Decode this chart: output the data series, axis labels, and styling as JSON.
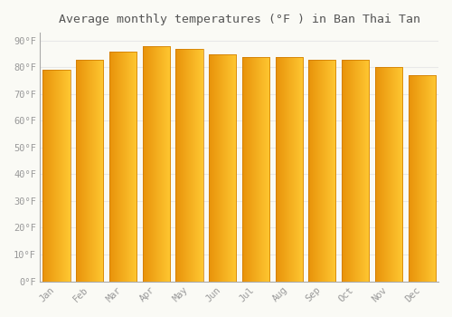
{
  "title": "Average monthly temperatures (°F ) in Ban Thai Tan",
  "months": [
    "Jan",
    "Feb",
    "Mar",
    "Apr",
    "May",
    "Jun",
    "Jul",
    "Aug",
    "Sep",
    "Oct",
    "Nov",
    "Dec"
  ],
  "values": [
    79,
    83,
    86,
    88,
    87,
    85,
    84,
    84,
    83,
    83,
    80,
    77
  ],
  "bar_color_left": "#E8920A",
  "bar_color_right": "#FFC832",
  "bar_edge_color": "#CC7700",
  "background_color": "#FAFAF5",
  "plot_bg_color": "#FAFAF5",
  "grid_color": "#E8E8E8",
  "text_color": "#999999",
  "title_color": "#555555",
  "ylim": [
    0,
    93
  ],
  "yticks": [
    0,
    10,
    20,
    30,
    40,
    50,
    60,
    70,
    80,
    90
  ],
  "ytick_labels": [
    "0°F",
    "10°F",
    "20°F",
    "30°F",
    "40°F",
    "50°F",
    "60°F",
    "70°F",
    "80°F",
    "90°F"
  ],
  "figsize": [
    5.0,
    3.5
  ],
  "dpi": 100,
  "bar_width": 0.82
}
